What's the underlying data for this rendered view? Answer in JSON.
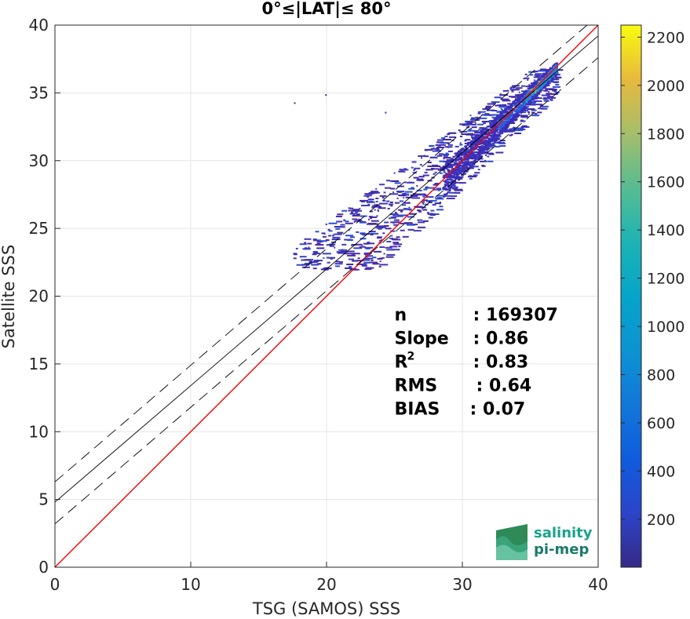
{
  "chart_data": {
    "type": "heatmap",
    "title": "0°≤|LAT|≤ 80°",
    "xlabel": "TSG (SAMOS) SSS",
    "ylabel": "Satellite SSS",
    "xlim": [
      0,
      40
    ],
    "ylim": [
      0,
      40
    ],
    "xticks": [
      "0",
      "10",
      "20",
      "30",
      "40"
    ],
    "yticks": [
      "0",
      "5",
      "10",
      "15",
      "20",
      "25",
      "30",
      "35",
      "40"
    ],
    "grid": true,
    "colorbar": {
      "ticks": [
        "200",
        "400",
        "600",
        "800",
        "1000",
        "1200",
        "1400",
        "1600",
        "1800",
        "2000",
        "2200"
      ],
      "range": [
        1,
        2250
      ],
      "colormap": "parula"
    },
    "lines": [
      {
        "name": "one-to-one",
        "color": "#ff0000",
        "style": "solid",
        "intercept": 0,
        "slope": 1
      },
      {
        "name": "regression",
        "color": "#000000",
        "style": "solid",
        "intercept": 4.8,
        "slope": 0.86
      },
      {
        "name": "regression-upper",
        "color": "#000000",
        "style": "dashed",
        "intercept": 6.3,
        "slope": 0.86
      },
      {
        "name": "regression-lower",
        "color": "#000000",
        "style": "dashed",
        "intercept": 3.2,
        "slope": 0.86
      }
    ],
    "stats": [
      {
        "label": "n",
        "value": ": 169307"
      },
      {
        "label": "Slope",
        "value": ": 0.86"
      },
      {
        "label": "R",
        "sup": "2",
        "value": ": 0.83"
      },
      {
        "label": "RMS",
        "value": ": 0.64"
      },
      {
        "label": "BIAS",
        "value": ": 0.07"
      }
    ],
    "density_regions": [
      {
        "x": [
          29,
          37
        ],
        "y": [
          29,
          37
        ],
        "level": "high"
      },
      {
        "x": [
          17,
          37
        ],
        "y": [
          22,
          37
        ],
        "level": "low"
      }
    ]
  },
  "logo": {
    "line1": "salinity",
    "line2": "pi-mep"
  }
}
